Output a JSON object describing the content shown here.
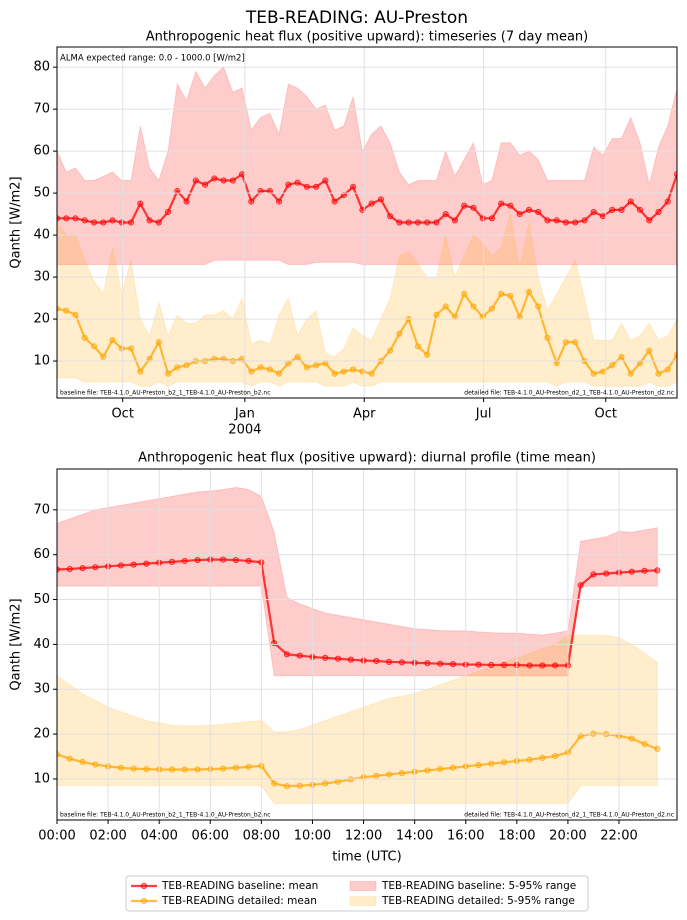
{
  "title": "TEB-READING: AU-Preston",
  "legend": "lower center",
  "chart_data": [
    {
      "type": "line",
      "subtitle": "Anthropogenic heat flux (positive upward): timeseries (7 day mean)",
      "y_label": "Qanth [W/m2]",
      "notes": {
        "range": "ALMA expected range: 0.0 - 1000.0 [W/m2]",
        "baseline_file": "baseline file: TEB-4.1.0_AU-Preston_b2_1_TEB-4.1.0_AU-Preston_b2.nc",
        "detailed_file": "detailed file: TEB-4.1.0_AU-Preston_d2_1_TEB-4.1.0_AU-Preston_d2.nc"
      },
      "grid": true,
      "xlim": [
        0,
        67
      ],
      "ylim": [
        1.2,
        84.8
      ],
      "xticks": [
        {
          "value": 7.1,
          "label": "Oct"
        },
        {
          "value": 20.3,
          "label": "Jan",
          "year": "2004"
        },
        {
          "value": 33.2,
          "label": "Apr"
        },
        {
          "value": 46.1,
          "label": "Jul"
        },
        {
          "value": 59.3,
          "label": "Oct"
        }
      ],
      "yticks": [
        10,
        20,
        30,
        40,
        50,
        60,
        70,
        80
      ],
      "x": [
        0,
        1,
        2,
        3,
        4,
        5,
        6,
        7,
        8,
        9,
        10,
        11,
        12,
        13,
        14,
        15,
        16,
        17,
        18,
        19,
        20,
        21,
        22,
        23,
        24,
        25,
        26,
        27,
        28,
        29,
        30,
        31,
        32,
        33,
        34,
        35,
        36,
        37,
        38,
        39,
        40,
        41,
        42,
        43,
        44,
        45,
        46,
        47,
        48,
        49,
        50,
        51,
        52,
        53,
        54,
        55,
        56,
        57,
        58,
        59,
        60,
        61,
        62,
        63,
        64,
        65,
        66,
        67
      ],
      "bands": [
        {
          "name": "TEB-READING baseline: 5-95% range",
          "color": "#ff0000",
          "high": [
            60,
            55,
            56,
            53,
            53,
            54,
            55,
            53,
            53,
            66,
            56,
            53,
            60,
            76,
            72,
            79,
            75,
            78,
            80,
            74,
            75,
            65,
            68,
            69,
            64,
            76,
            75,
            73,
            70,
            71,
            65,
            66,
            73,
            60,
            64,
            66,
            62,
            55,
            52,
            53,
            53,
            53,
            60,
            54,
            58,
            62,
            52,
            53,
            62,
            62,
            59,
            60,
            58,
            53,
            53,
            53,
            53,
            53,
            61,
            59,
            63,
            63,
            68,
            62,
            52,
            61,
            66,
            75
          ],
          "low": [
            33,
            33,
            33,
            33,
            33,
            33,
            33,
            33,
            33,
            33,
            33,
            33,
            33,
            33,
            33,
            33,
            33,
            34,
            34,
            34,
            34,
            34,
            34,
            34,
            34,
            33,
            33,
            33,
            33.5,
            33.5,
            33.5,
            33.5,
            33.5,
            33,
            33,
            33,
            33,
            33,
            33,
            33,
            33,
            33,
            33,
            33,
            33,
            33,
            33,
            33,
            33,
            33,
            33,
            33,
            33,
            33,
            33,
            33,
            33,
            33,
            33,
            33,
            33,
            33,
            33,
            33,
            33,
            33,
            33,
            33
          ]
        },
        {
          "name": "TEB-READING detailed: 5-95% range",
          "color": "#ffa500",
          "high": [
            43,
            40,
            40,
            34,
            29,
            26,
            37,
            26,
            34,
            20,
            16,
            24,
            16,
            21,
            19,
            19,
            21,
            21,
            22,
            20,
            25,
            14,
            15,
            14,
            21,
            25,
            16,
            20,
            22,
            12,
            11,
            13,
            18,
            16,
            15,
            20,
            25,
            35,
            36,
            33,
            30,
            30,
            40,
            30,
            35,
            40,
            38,
            35,
            37,
            45,
            32,
            43,
            30,
            22,
            26,
            30,
            34,
            25,
            15,
            15,
            15,
            19,
            15,
            16,
            19,
            15,
            16,
            20
          ],
          "low": [
            6,
            6,
            6,
            5,
            5,
            5,
            5,
            5,
            5,
            4,
            4,
            5,
            4,
            5,
            5,
            5,
            5,
            5,
            5,
            5,
            5,
            4,
            5,
            5,
            4,
            5,
            5,
            5,
            5,
            4,
            4,
            4,
            5,
            4,
            4,
            5,
            5,
            5,
            5,
            5,
            5,
            5,
            5,
            5,
            5,
            5,
            5,
            5,
            5,
            5,
            5,
            5,
            5,
            5,
            4,
            5,
            5,
            5,
            4,
            4,
            4,
            4,
            4,
            4,
            5,
            4,
            4,
            5
          ]
        }
      ],
      "series": [
        {
          "name": "TEB-READING baseline: mean",
          "color": "#ff0000",
          "values": [
            44,
            44,
            44,
            43.5,
            43,
            43,
            43.5,
            43,
            43,
            47.5,
            43.5,
            43,
            45.5,
            50.5,
            48,
            53,
            52,
            53.5,
            53,
            53,
            54.5,
            48,
            50.5,
            50.5,
            48,
            52,
            52.5,
            51.5,
            51.5,
            53,
            48,
            49.5,
            51.5,
            46,
            47.5,
            48.5,
            44.5,
            43,
            43,
            43,
            43,
            43,
            45,
            43.5,
            47,
            46.5,
            44,
            44,
            47.5,
            47,
            45,
            46,
            45.5,
            43.5,
            43.5,
            43,
            43,
            43.5,
            45.5,
            44.5,
            46,
            46,
            48,
            46,
            43.5,
            45.5,
            48,
            54.5
          ]
        },
        {
          "name": "TEB-READING detailed: mean",
          "color": "#ffa500",
          "values": [
            22.5,
            22,
            21,
            15.5,
            13.5,
            11,
            15,
            13,
            13,
            7.5,
            10.5,
            14.5,
            7,
            8.5,
            9,
            10,
            10,
            10.5,
            10.5,
            10,
            10.5,
            7.5,
            8.5,
            8,
            7,
            9.5,
            11,
            8.5,
            9,
            9.5,
            7,
            7.5,
            8,
            7.5,
            7,
            10,
            12.5,
            16.5,
            20,
            13.5,
            11.5,
            21,
            23,
            20.5,
            26,
            23,
            20.5,
            22.5,
            26,
            25.5,
            20.5,
            26.5,
            23,
            15.5,
            9.5,
            14.5,
            14.5,
            10,
            7,
            7.5,
            9,
            11,
            7,
            9.5,
            12.5,
            7,
            8,
            11.5
          ]
        }
      ]
    },
    {
      "type": "line",
      "subtitle": "Anthropogenic heat flux (positive upward): diurnal profile (time mean)",
      "y_label": "Qanth [W/m2]",
      "x_label": "time (UTC)",
      "notes": {
        "baseline_file": "baseline file: TEB-4.1.0_AU-Preston_b2_1_TEB-4.1.0_AU-Preston_b2.nc",
        "detailed_file": "detailed file: TEB-4.1.0_AU-Preston_d2_1_TEB-4.1.0_AU-Preston_d2.nc"
      },
      "grid": true,
      "xlim": [
        0,
        24.27
      ],
      "ylim": [
        0.85,
        79.1
      ],
      "xticks": [
        {
          "value": 0,
          "label": "00:00"
        },
        {
          "value": 2,
          "label": "02:00"
        },
        {
          "value": 4,
          "label": "04:00"
        },
        {
          "value": 6,
          "label": "06:00"
        },
        {
          "value": 8,
          "label": "08:00"
        },
        {
          "value": 10,
          "label": "10:00"
        },
        {
          "value": 12,
          "label": "12:00"
        },
        {
          "value": 14,
          "label": "14:00"
        },
        {
          "value": 16,
          "label": "16:00"
        },
        {
          "value": 18,
          "label": "18:00"
        },
        {
          "value": 20,
          "label": "20:00"
        },
        {
          "value": 22,
          "label": "22:00"
        }
      ],
      "yticks": [
        10,
        20,
        30,
        40,
        50,
        60,
        70
      ],
      "x": [
        0,
        0.5,
        1,
        1.5,
        2,
        2.5,
        3,
        3.5,
        4,
        4.5,
        5,
        5.5,
        6,
        6.5,
        7,
        7.5,
        8,
        8.5,
        9,
        9.5,
        10,
        10.5,
        11,
        11.5,
        12,
        12.5,
        13,
        13.5,
        14,
        14.5,
        15,
        15.5,
        16,
        16.5,
        17,
        17.5,
        18,
        18.5,
        19,
        19.5,
        20,
        20.5,
        21,
        21.5,
        22,
        22.5,
        23,
        23.5
      ],
      "bands": [
        {
          "color": "#ff0000",
          "high": [
            67,
            68,
            69,
            70,
            70.5,
            71,
            71.5,
            72,
            72.5,
            73,
            73.5,
            74,
            74.2,
            74.5,
            75,
            74.5,
            73,
            65,
            50.5,
            49,
            48,
            47,
            46.5,
            46,
            45.5,
            45,
            44.5,
            44,
            43.5,
            43.3,
            43.1,
            43,
            43,
            42.8,
            42.6,
            42.5,
            42.5,
            42.3,
            42.1,
            42.5,
            43,
            63,
            63.5,
            64,
            65.2,
            65,
            65.5,
            66
          ],
          "low": [
            53,
            53,
            53,
            53,
            53,
            53,
            53,
            53,
            53,
            53,
            53,
            53,
            53,
            53,
            53,
            53,
            53,
            33,
            33,
            33,
            33,
            33,
            33,
            33,
            33,
            33,
            33,
            33,
            33,
            33,
            33,
            33,
            33,
            33,
            33,
            33,
            33,
            33,
            33,
            33,
            33,
            53,
            53,
            53,
            53,
            53,
            53,
            53
          ]
        },
        {
          "color": "#ffa500",
          "high": [
            33,
            31,
            29,
            27.5,
            26,
            25,
            24,
            23,
            22.5,
            22,
            21.8,
            21.8,
            22,
            22.2,
            22.5,
            22.8,
            23,
            20.5,
            20.5,
            21,
            22,
            23,
            24,
            25,
            26,
            27,
            28,
            28.5,
            29,
            30,
            31,
            32,
            33,
            34,
            35,
            36,
            37,
            38,
            39,
            40,
            42,
            42,
            42,
            42,
            41.5,
            40,
            38,
            36
          ],
          "low": [
            8.5,
            8.5,
            8.5,
            8.5,
            8.5,
            8.5,
            8.5,
            8.5,
            8.5,
            8.5,
            8.5,
            8.5,
            8.5,
            8.5,
            8.5,
            8.5,
            8.5,
            4.5,
            4.5,
            4.5,
            4.5,
            4.5,
            4.5,
            4.5,
            4.5,
            4.5,
            4.5,
            4.5,
            4.5,
            4.5,
            4.5,
            4.5,
            4.5,
            4.5,
            4.5,
            4.5,
            4.5,
            4.5,
            4.5,
            4.5,
            4.5,
            8.5,
            8.5,
            8.5,
            8.5,
            8.5,
            8.5,
            8.5
          ]
        }
      ],
      "series": [
        {
          "color": "#ff0000",
          "values": [
            56.7,
            56.8,
            57,
            57.2,
            57.4,
            57.6,
            57.8,
            58,
            58.2,
            58.4,
            58.6,
            58.8,
            58.9,
            58.9,
            58.8,
            58.6,
            58.3,
            40.3,
            37.8,
            37.5,
            37.2,
            37,
            36.8,
            36.6,
            36.4,
            36.3,
            36.1,
            36,
            35.9,
            35.8,
            35.7,
            35.6,
            35.5,
            35.5,
            35.4,
            35.4,
            35.4,
            35.3,
            35.3,
            35.3,
            35.3,
            53.2,
            55.6,
            55.8,
            56,
            56.2,
            56.4,
            56.5
          ]
        },
        {
          "color": "#ffa500",
          "values": [
            15.5,
            14.5,
            13.8,
            13.2,
            12.8,
            12.5,
            12.3,
            12.2,
            12.1,
            12.1,
            12.1,
            12.1,
            12.2,
            12.3,
            12.5,
            12.7,
            12.9,
            9,
            8.4,
            8.5,
            8.7,
            9,
            9.4,
            9.9,
            10.4,
            10.7,
            11,
            11.3,
            11.6,
            11.9,
            12.2,
            12.5,
            12.8,
            13.1,
            13.4,
            13.7,
            14,
            14.3,
            14.7,
            15.1,
            15.9,
            19.6,
            20.1,
            20,
            19.6,
            19,
            17.8,
            16.7
          ]
        }
      ]
    }
  ]
}
